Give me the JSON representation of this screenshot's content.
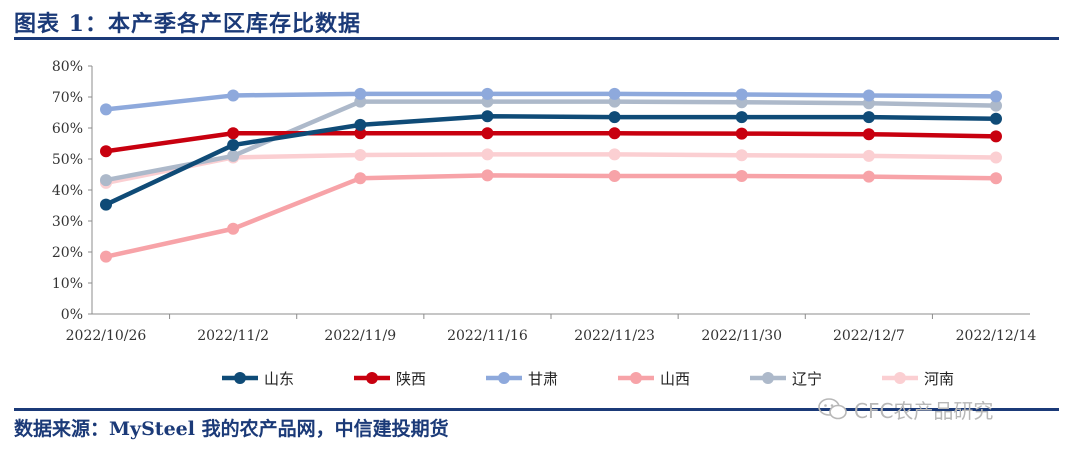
{
  "header": {
    "title": "图表 1：本产季各产区库存比数据"
  },
  "footer": {
    "source": "数据来源：MySteel 我的农产品网，中信建投期货"
  },
  "watermark": {
    "text": "CFC农产品研究",
    "icon": "wechat-icon"
  },
  "chart_data": {
    "type": "line",
    "title": "",
    "xlabel": "",
    "ylabel": "",
    "categories": [
      "2022/10/26",
      "2022/11/2",
      "2022/11/9",
      "2022/11/16",
      "2022/11/23",
      "2022/11/30",
      "2022/12/7",
      "2022/12/14"
    ],
    "y_ticks": [
      "0%",
      "10%",
      "20%",
      "30%",
      "40%",
      "50%",
      "60%",
      "70%",
      "80%"
    ],
    "ylim": [
      0,
      80
    ],
    "y_unit": "%",
    "grid": false,
    "legend_position": "bottom",
    "series": [
      {
        "name": "山东",
        "color": "#0f4b77",
        "values": [
          35.3,
          54.5,
          61.0,
          63.8,
          63.5,
          63.5,
          63.5,
          63.0
        ]
      },
      {
        "name": "陕西",
        "color": "#c8000f",
        "values": [
          52.5,
          58.3,
          58.3,
          58.3,
          58.3,
          58.2,
          58.0,
          57.3
        ]
      },
      {
        "name": "甘肃",
        "color": "#8ea9dc",
        "values": [
          66.0,
          70.5,
          71.0,
          71.0,
          71.0,
          70.8,
          70.5,
          70.2
        ]
      },
      {
        "name": "山西",
        "color": "#f7a3a8",
        "values": [
          18.5,
          27.5,
          43.8,
          44.7,
          44.5,
          44.5,
          44.3,
          43.8
        ]
      },
      {
        "name": "辽宁",
        "color": "#adb9ca",
        "values": [
          43.2,
          51.0,
          68.5,
          68.5,
          68.5,
          68.3,
          68.0,
          67.2
        ]
      },
      {
        "name": "河南",
        "color": "#fbcfd2",
        "values": [
          42.3,
          50.5,
          51.3,
          51.5,
          51.5,
          51.2,
          51.0,
          50.5
        ]
      }
    ]
  }
}
